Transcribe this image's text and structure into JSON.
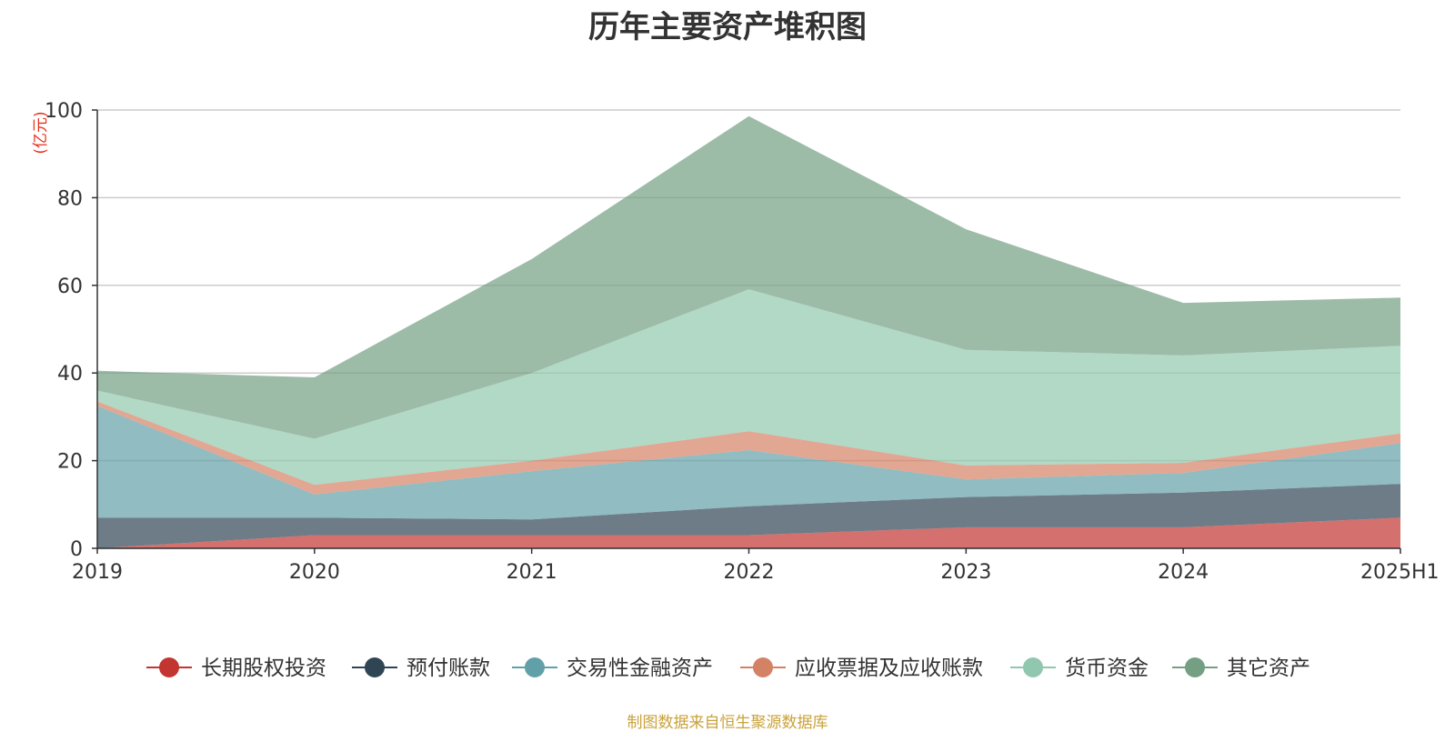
{
  "source_note": "制图数据来自恒生聚源数据库",
  "chart_data": {
    "type": "area",
    "stacked": true,
    "title": "历年主要资产堆积图",
    "ylabel": "亿元",
    "ylim": [
      0,
      100
    ],
    "yticks": [
      0,
      20,
      40,
      60,
      80,
      100
    ],
    "grid": true,
    "legend_position": "bottom",
    "categories": [
      "2019",
      "2020",
      "2021",
      "2022",
      "2023",
      "2024",
      "2025H1"
    ],
    "series": [
      {
        "name": "长期股权投资",
        "color": "#c23531",
        "values": [
          0,
          3,
          3,
          3,
          4.8,
          4.8,
          7
        ]
      },
      {
        "name": "预付账款",
        "color": "#2f4554",
        "values": [
          7,
          4,
          3.6,
          6.6,
          6.9,
          7.9,
          7.7
        ]
      },
      {
        "name": "交易性金融资产",
        "color": "#61a0a8",
        "values": [
          25.5,
          5.3,
          11,
          12.8,
          4,
          4.5,
          9.3
        ]
      },
      {
        "name": "应收票据及应收账款",
        "color": "#d48265",
        "values": [
          1,
          2.2,
          2.4,
          4.3,
          3.2,
          2.3,
          2.2
        ]
      },
      {
        "name": "货币资金",
        "color": "#91c7ae",
        "values": [
          2.5,
          10.5,
          20,
          32.4,
          26.4,
          24.5,
          20
        ]
      },
      {
        "name": "其它资产",
        "color": "#749f83",
        "values": [
          4.5,
          14,
          26,
          39.5,
          27.5,
          12,
          11
        ]
      }
    ]
  }
}
